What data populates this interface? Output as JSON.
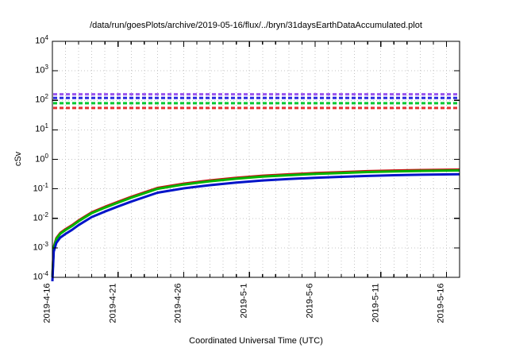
{
  "window": {
    "background": "#ffffff",
    "foreground": "#000000"
  },
  "chart_data": {
    "type": "line",
    "title": "/data/run/goesPlots/archive/2019-05-16/flux/../bryn/31daysEarthDataAccumulated.plot",
    "xlabel": "Coordinated Universal Time (UTC)",
    "ylabel": "cSv",
    "x_axis": {
      "scale": "time",
      "start": "2019-4-16",
      "end": "2019-5-17",
      "span_days": 31,
      "major_tick_interval_days": 5,
      "minor_tick_interval_days": 1,
      "tick_days": [
        0,
        5,
        10,
        15,
        20,
        25,
        30
      ],
      "tick_labels": [
        "2019-4-16",
        "2019-4-21",
        "2019-4-26",
        "2019-5-1",
        "2019-5-6",
        "2019-5-11",
        "2019-5-16"
      ]
    },
    "y_axis": {
      "scale": "log10",
      "min": 0.0001,
      "max": 10000,
      "tick_exponents": [
        4,
        3,
        2,
        1,
        0,
        -1,
        -2,
        -3,
        -4
      ],
      "tick_base": "10"
    },
    "grid": {
      "on": true,
      "style": "dotted",
      "color": "#c4c4c4",
      "vertical": "every 1 day",
      "horizontal": "every decade"
    },
    "legend": "none",
    "x_days": [
      0,
      0.1,
      0.3,
      0.6,
      1,
      1.5,
      2,
      3,
      4,
      5,
      6,
      8,
      10,
      12,
      14,
      16,
      18,
      20,
      22,
      24,
      26,
      28,
      31
    ],
    "series": [
      {
        "name": "accumulated-dose-red",
        "color": "#c81414",
        "style": "solid",
        "values": [
          0.000107,
          0.00107,
          0.00214,
          0.00321,
          0.00428,
          0.00589,
          0.00856,
          0.0161,
          0.0246,
          0.0364,
          0.0535,
          0.107,
          0.15,
          0.193,
          0.235,
          0.278,
          0.31,
          0.342,
          0.369,
          0.396,
          0.417,
          0.433,
          0.449
        ]
      },
      {
        "name": "accumulated-dose-green",
        "color": "#00b400",
        "style": "solid",
        "values": [
          0.0001,
          0.001,
          0.002,
          0.003,
          0.004,
          0.0055,
          0.008,
          0.015,
          0.023,
          0.034,
          0.05,
          0.1,
          0.14,
          0.18,
          0.22,
          0.26,
          0.29,
          0.32,
          0.345,
          0.37,
          0.39,
          0.405,
          0.42
        ]
      },
      {
        "name": "accumulated-dose-blue",
        "color": "#0014c8",
        "style": "solid",
        "values": [
          7.4e-05,
          0.00074,
          0.00148,
          0.00222,
          0.00296,
          0.00407,
          0.00592,
          0.0111,
          0.017,
          0.0252,
          0.037,
          0.074,
          0.104,
          0.133,
          0.163,
          0.192,
          0.215,
          0.237,
          0.255,
          0.274,
          0.289,
          0.3,
          0.311
        ]
      }
    ],
    "threshold_lines": [
      {
        "name": "limit-purple",
        "color": "#9955ee",
        "style": "dashed",
        "value_cSv": 160
      },
      {
        "name": "limit-blue",
        "color": "#2a2ae0",
        "style": "dashed",
        "value_cSv": 120
      },
      {
        "name": "limit-green",
        "color": "#00c832",
        "style": "dashed",
        "value_cSv": 80
      },
      {
        "name": "limit-red",
        "color": "#e63232",
        "style": "dashed",
        "value_cSv": 55
      }
    ]
  }
}
